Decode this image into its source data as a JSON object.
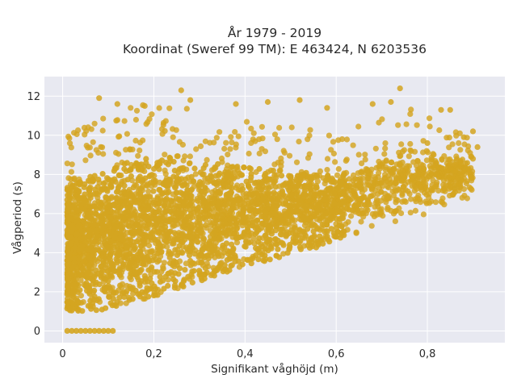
{
  "chart_data": {
    "type": "scatter",
    "title_line1": "År 1979 - 2019",
    "title_line2": "Koordinat (Sweref 99 TM): E 463424, N 6203536",
    "xlabel": "Signifikant våghöjd (m)",
    "ylabel": "Vågperiod (s)",
    "xlim": [
      -0.04,
      0.97
    ],
    "ylim": [
      -0.6,
      13.0
    ],
    "x_ticks": [
      0,
      0.2,
      0.4,
      0.6,
      0.8
    ],
    "x_tick_labels": [
      "0",
      "0,2",
      "0,4",
      "0,6",
      "0,8"
    ],
    "y_ticks": [
      0,
      2,
      4,
      6,
      8,
      10,
      12
    ],
    "y_tick_labels": [
      "0",
      "2",
      "4",
      "6",
      "8",
      "10",
      "12"
    ],
    "grid": true,
    "legend": "none",
    "colors": {
      "marker": "#D4A520",
      "plot_bg": "#E8E9F1",
      "grid": "#ffffff"
    },
    "series": [
      {
        "envelope": {
          "x": [
            0.01,
            0.05,
            0.1,
            0.15,
            0.2,
            0.25,
            0.3,
            0.35,
            0.4,
            0.45,
            0.5,
            0.55,
            0.6,
            0.65,
            0.7,
            0.75,
            0.8,
            0.85,
            0.9
          ],
          "y_min": [
            1.0,
            1.0,
            1.1,
            1.4,
            1.7,
            2.1,
            2.5,
            2.9,
            3.3,
            3.6,
            3.9,
            4.2,
            4.6,
            4.9,
            5.3,
            5.6,
            6.0,
            6.4,
            6.9
          ],
          "y_max": [
            10.0,
            10.5,
            11.0,
            11.5,
            11.8,
            11.5,
            11.2,
            11.0,
            10.8,
            10.6,
            10.5,
            10.3,
            10.0,
            10.5,
            11.0,
            11.5,
            11.3,
            10.5,
            10.0
          ]
        },
        "zero_points_x": [
          0.01,
          0.02,
          0.03,
          0.04,
          0.05,
          0.06,
          0.07,
          0.08,
          0.09,
          0.1,
          0.11
        ],
        "zero_points_y": 0,
        "outliers": [
          [
            0.08,
            11.9
          ],
          [
            0.12,
            11.6
          ],
          [
            0.18,
            11.5
          ],
          [
            0.26,
            12.3
          ],
          [
            0.28,
            11.8
          ],
          [
            0.38,
            11.6
          ],
          [
            0.45,
            11.7
          ],
          [
            0.52,
            11.8
          ],
          [
            0.58,
            11.4
          ],
          [
            0.68,
            11.6
          ],
          [
            0.72,
            11.7
          ],
          [
            0.74,
            12.4
          ],
          [
            0.83,
            11.3
          ],
          [
            0.85,
            11.3
          ],
          [
            0.88,
            9.9
          ],
          [
            0.9,
            10.2
          ],
          [
            0.91,
            9.4
          ],
          [
            0.9,
            8.8
          ],
          [
            0.8,
            9.6
          ],
          [
            0.86,
            7.3
          ]
        ]
      }
    ]
  }
}
